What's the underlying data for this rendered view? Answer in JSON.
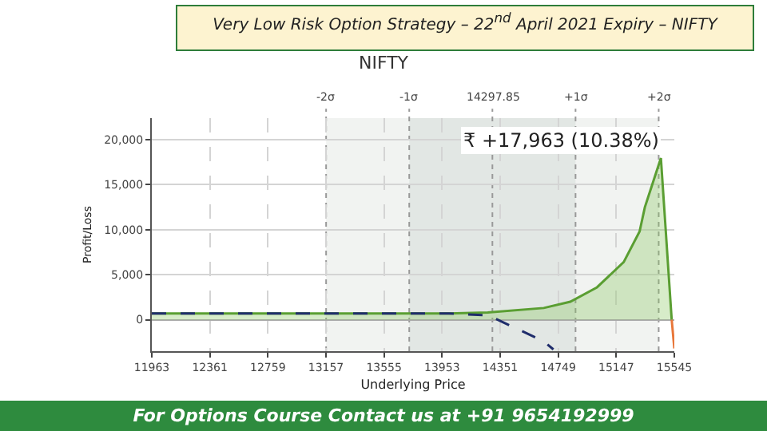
{
  "chart_data": {
    "type": "line",
    "title": "Very Low Risk Option Strategy – 22$^{nd}$ April 2021 Expiry – NIFTY",
    "subtitle": "NIFTY",
    "xlabel": "Underlying Price",
    "ylabel": "Profit/Loss",
    "series": [
      {
        "type": "area",
        "color": "#5a9e32",
        "x": [
          11963,
          13000,
          14000,
          14266,
          14650,
          14832,
          15015,
          15198,
          15307,
          15343,
          15453,
          15527
        ],
        "values": [
          700,
          700,
          700,
          800,
          1300,
          2000,
          3600,
          6400,
          9800,
          12500,
          17963,
          0
        ]
      },
      {
        "color": "#e8773a",
        "x": [
          15527,
          15545
        ],
        "values": [
          0,
          -3200
        ]
      },
      {
        "color": "#1f2d6b",
        "line_style": "dashed",
        "x": [
          11963,
          13000,
          14000,
          14100,
          14266,
          14466,
          14650,
          14716
        ],
        "values": [
          700,
          700,
          700,
          600,
          500,
          -1000,
          -2400,
          -3300
        ]
      }
    ],
    "xlim": [
      11963,
      15545
    ],
    "xticks": [
      11963,
      12361,
      12759,
      13157,
      13555,
      13953,
      14351,
      14749,
      15147,
      15545
    ],
    "ylim": [
      -3500,
      22400
    ],
    "yticks": [
      {
        "value": 0,
        "label": "0"
      },
      {
        "value": 5000,
        "label": "5,000"
      },
      {
        "value": 10000,
        "label": "10,000"
      },
      {
        "value": 15000,
        "label": "15,000"
      },
      {
        "value": 20000,
        "label": "20,000"
      }
    ],
    "ref_lines": [
      {
        "axis": "x",
        "value": 13157.85,
        "label": "-2σ"
      },
      {
        "axis": "x",
        "value": 13727.85,
        "label": "-1σ"
      },
      {
        "axis": "x",
        "value": 14297.85,
        "label": "14297.85"
      },
      {
        "axis": "x",
        "value": 14867.85,
        "label": "+1σ"
      },
      {
        "axis": "x",
        "value": 15437.85,
        "label": "+2σ"
      }
    ],
    "bands": [
      {
        "axis": "x",
        "from": 13157.85,
        "to": 15437.85,
        "color": "#f1f3f1"
      },
      {
        "axis": "x",
        "from": 13727.85,
        "to": 14867.85,
        "color": "#e2e7e4"
      }
    ],
    "annotations": [
      {
        "text": "₹ +17,963 (10.38%)",
        "x": 15453,
        "y": 17963
      },
      "For Options Course Contact us at +91 9654192999"
    ],
    "grid": true
  }
}
